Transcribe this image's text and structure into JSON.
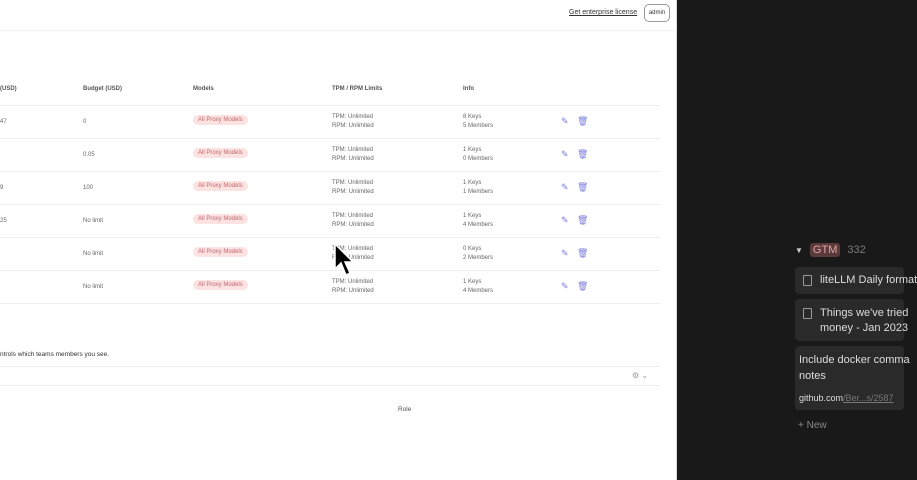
{
  "header": {
    "enterprise_link": "Get enterprise license",
    "user_button": "admin"
  },
  "table": {
    "columns": [
      "(USD)",
      "Budget (USD)",
      "Models",
      "TPM / RPM Limits",
      "Info"
    ],
    "rows": [
      {
        "spend": "47",
        "budget": "0",
        "models": "All Proxy Models",
        "tpm": "TPM: Unlimited",
        "rpm": "RPM: Unlimited",
        "keys": "8 Keys",
        "members": "5 Members"
      },
      {
        "spend": "",
        "budget": "0.05",
        "models": "All Proxy Models",
        "tpm": "TPM: Unlimited",
        "rpm": "RPM: Unlimited",
        "keys": "1 Keys",
        "members": "0 Members"
      },
      {
        "spend": "9",
        "budget": "100",
        "models": "All Proxy Models",
        "tpm": "TPM: Unlimited",
        "rpm": "RPM: Unlimited",
        "keys": "1 Keys",
        "members": "1 Members"
      },
      {
        "spend": "25",
        "budget": "No limit",
        "models": "All Proxy Models",
        "tpm": "TPM: Unlimited",
        "rpm": "RPM: Unlimited",
        "keys": "1 Keys",
        "members": "4 Members"
      },
      {
        "spend": "",
        "budget": "No limit",
        "models": "All Proxy Models",
        "tpm": "TPM: Unlimited",
        "rpm": "RPM: Unlimited",
        "keys": "0 Keys",
        "members": "2 Members"
      },
      {
        "spend": "",
        "budget": "No limit",
        "models": "All Proxy Models",
        "tpm": "TPM: Unlimited",
        "rpm": "RPM: Unlimited",
        "keys": "1 Keys",
        "members": "4 Members"
      }
    ]
  },
  "note": "ntrols which teams members you see.",
  "members_table": {
    "role_header": "Role"
  },
  "sidebar": {
    "group": "GTM",
    "count": "332",
    "cards": [
      {
        "title": "liteLLM Daily format"
      },
      {
        "title": "Things we've tried",
        "title2": "money - Jan 2023"
      },
      {
        "title": "Include docker comma",
        "title2": "notes",
        "link_domain": "github.com",
        "link_path": "/Ber...s/2587"
      }
    ],
    "new_label": "New"
  },
  "colors": {
    "accent": "#7c7cdc",
    "badge_bg": "#fde2e2",
    "dark_bg": "#191919"
  }
}
